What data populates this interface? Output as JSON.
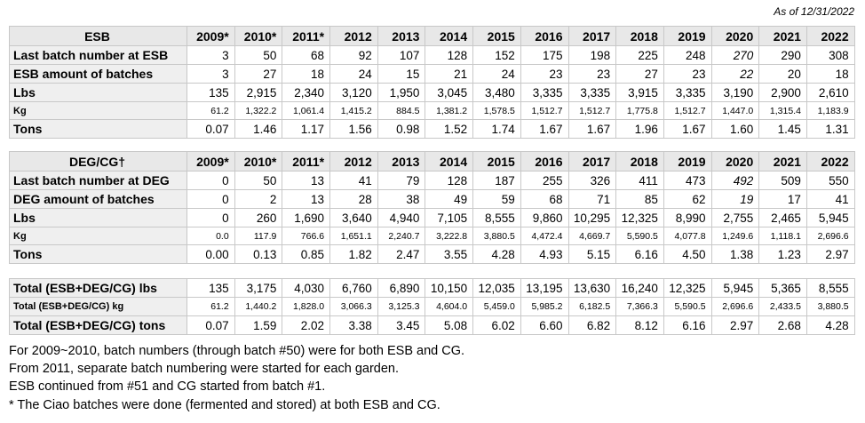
{
  "as_of": "As of 12/31/2022",
  "years": [
    "2009*",
    "2010*",
    "2011*",
    "2012",
    "2013",
    "2014",
    "2015",
    "2016",
    "2017",
    "2018",
    "2019",
    "2020",
    "2021",
    "2022"
  ],
  "esb": {
    "header": "ESB",
    "rows": [
      {
        "label": "Last batch number at ESB",
        "values": [
          "3",
          "50",
          "68",
          "92",
          "107",
          "128",
          "152",
          "175",
          "198",
          "225",
          "248",
          "270",
          "290",
          "308"
        ]
      },
      {
        "label": "ESB amount of batches",
        "values": [
          "3",
          "27",
          "18",
          "24",
          "15",
          "21",
          "24",
          "23",
          "23",
          "27",
          "23",
          "22",
          "20",
          "18"
        ]
      },
      {
        "label": "Lbs",
        "values": [
          "135",
          "2,915",
          "2,340",
          "3,120",
          "1,950",
          "3,045",
          "3,480",
          "3,335",
          "3,335",
          "3,915",
          "3,335",
          "3,190",
          "2,900",
          "2,610"
        ]
      },
      {
        "label": "Kg",
        "values": [
          "61.2",
          "1,322.2",
          "1,061.4",
          "1,415.2",
          "884.5",
          "1,381.2",
          "1,578.5",
          "1,512.7",
          "1,512.7",
          "1,775.8",
          "1,512.7",
          "1,447.0",
          "1,315.4",
          "1,183.9"
        ]
      },
      {
        "label": "Tons",
        "values": [
          "0.07",
          "1.46",
          "1.17",
          "1.56",
          "0.98",
          "1.52",
          "1.74",
          "1.67",
          "1.67",
          "1.96",
          "1.67",
          "1.60",
          "1.45",
          "1.31"
        ]
      }
    ]
  },
  "deg": {
    "header": "DEG/CG†",
    "rows": [
      {
        "label": "Last batch number at DEG",
        "values": [
          "0",
          "50",
          "13",
          "41",
          "79",
          "128",
          "187",
          "255",
          "326",
          "411",
          "473",
          "492",
          "509",
          "550"
        ]
      },
      {
        "label": "DEG amount of batches",
        "values": [
          "0",
          "2",
          "13",
          "28",
          "38",
          "49",
          "59",
          "68",
          "71",
          "85",
          "62",
          "19",
          "17",
          "41"
        ]
      },
      {
        "label": "Lbs",
        "values": [
          "0",
          "260",
          "1,690",
          "3,640",
          "4,940",
          "7,105",
          "8,555",
          "9,860",
          "10,295",
          "12,325",
          "8,990",
          "2,755",
          "2,465",
          "5,945"
        ]
      },
      {
        "label": "Kg",
        "values": [
          "0.0",
          "117.9",
          "766.6",
          "1,651.1",
          "2,240.7",
          "3,222.8",
          "3,880.5",
          "4,472.4",
          "4,669.7",
          "5,590.5",
          "4,077.8",
          "1,249.6",
          "1,118.1",
          "2,696.6"
        ]
      },
      {
        "label": "Tons",
        "values": [
          "0.00",
          "0.13",
          "0.85",
          "1.82",
          "2.47",
          "3.55",
          "4.28",
          "4.93",
          "5.15",
          "6.16",
          "4.50",
          "1.38",
          "1.23",
          "2.97"
        ]
      }
    ]
  },
  "total": {
    "rows": [
      {
        "label": "Total (ESB+DEG/CG) lbs",
        "values": [
          "135",
          "3,175",
          "4,030",
          "6,760",
          "6,890",
          "10,150",
          "12,035",
          "13,195",
          "13,630",
          "16,240",
          "12,325",
          "5,945",
          "5,365",
          "8,555"
        ]
      },
      {
        "label": "Total (ESB+DEG/CG) kg",
        "values": [
          "61.2",
          "1,440.2",
          "1,828.0",
          "3,066.3",
          "3,125.3",
          "4,604.0",
          "5,459.0",
          "5,985.2",
          "6,182.5",
          "7,366.3",
          "5,590.5",
          "2,696.6",
          "2,433.5",
          "3,880.5"
        ]
      },
      {
        "label": "Total (ESB+DEG/CG) tons",
        "values": [
          "0.07",
          "1.59",
          "2.02",
          "3.38",
          "3.45",
          "5.08",
          "6.02",
          "6.60",
          "6.82",
          "8.12",
          "6.16",
          "2.97",
          "2.68",
          "4.28"
        ]
      }
    ]
  },
  "notes": [
    "For 2009~2010, batch numbers (through batch #50) were for both ESB and CG.",
    "From 2011, separate batch numbering were started for each garden.",
    "ESB continued from #51 and CG started from batch #1.",
    "* The Ciao batches were done (fermented and stored) at both ESB and CG."
  ]
}
